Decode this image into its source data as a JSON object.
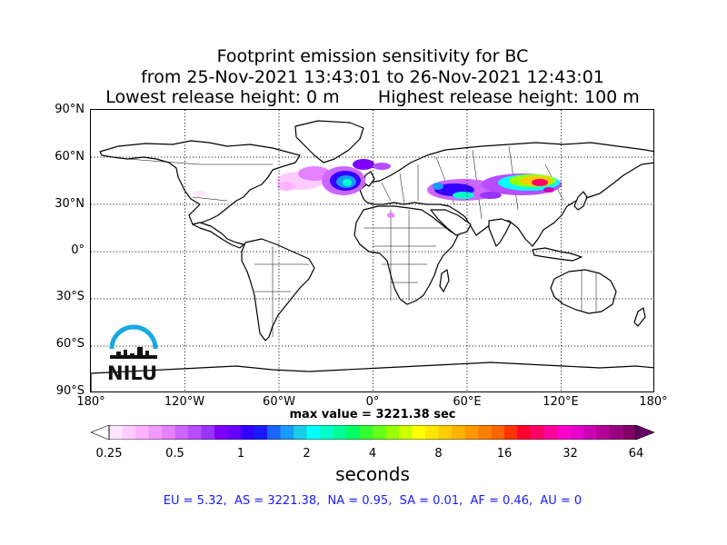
{
  "title": {
    "line1": "Footprint emission sensitivity for BC",
    "line2": "from 25-Nov-2021 13:43:01 to 26-Nov-2021 12:43:01",
    "line3": "Lowest release height: 0 m       Highest release height: 100 m"
  },
  "map": {
    "lat_labels": [
      "90°N",
      "60°N",
      "30°N",
      "0°",
      "30°S",
      "60°S",
      "90°S"
    ],
    "lon_labels": [
      "180°",
      "120°W",
      "60°W",
      "0°",
      "60°E",
      "120°E",
      "180°"
    ],
    "grid": true,
    "logo_text": "NILU"
  },
  "max_value_text": "max value = 3221.38 sec",
  "colorbar": {
    "tick_labels": [
      "0.25",
      "0.5",
      "1",
      "2",
      "4",
      "8",
      "16",
      "32",
      "64"
    ],
    "units_label": "seconds",
    "colors": [
      "#ffe6ff",
      "#ffccff",
      "#ffb3ff",
      "#f099ff",
      "#e680ff",
      "#cc66ff",
      "#b84dff",
      "#9933ff",
      "#8000ff",
      "#6600ff",
      "#3300ff",
      "#1a1aff",
      "#1a66ff",
      "#1a99ff",
      "#1acce6",
      "#00ffff",
      "#00ffcc",
      "#00ff99",
      "#00ff66",
      "#33ff33",
      "#66ff1a",
      "#99ff00",
      "#ccff00",
      "#ffff00",
      "#ffe600",
      "#ffcc00",
      "#ffb300",
      "#ff9900",
      "#ff8000",
      "#ff6600",
      "#ff3300",
      "#ff0033",
      "#ff0066",
      "#ff0099",
      "#ff00cc",
      "#e600cc",
      "#cc00b3",
      "#b30099",
      "#990080",
      "#800066"
    ],
    "under_color": "#ffffff",
    "over_color": "#660066"
  },
  "stats_text": "EU = 5.32,  AS = 3221.38,  NA = 0.95,  SA = 0.01,  AF = 0.46,  AU = 0"
}
